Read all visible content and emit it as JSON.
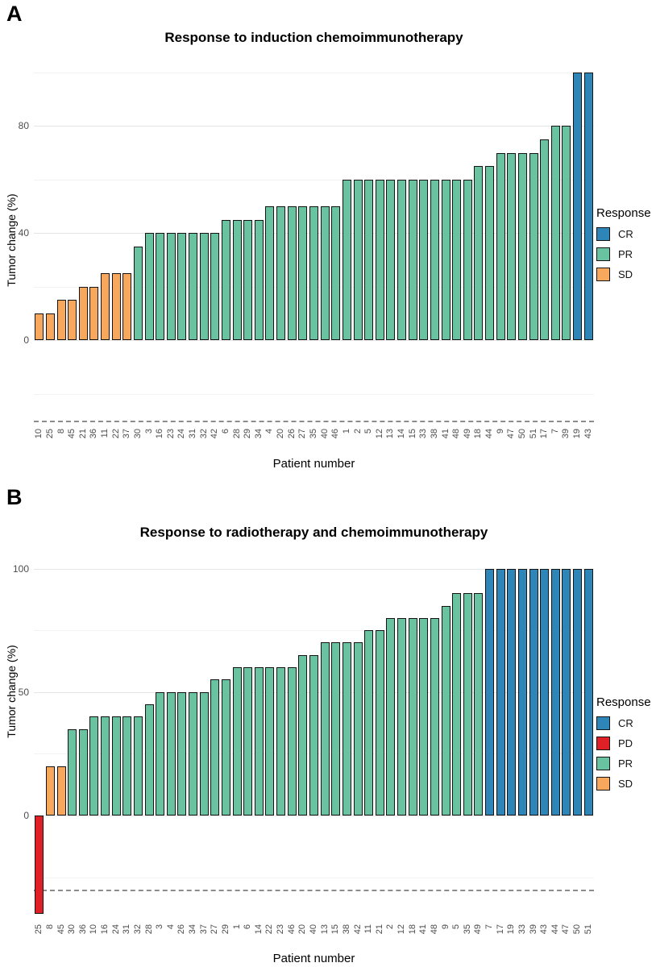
{
  "figure": {
    "background": "#ffffff"
  },
  "chart_data": [
    {
      "type": "bar",
      "panel_label": "A",
      "title": "Response to induction chemoimmunotherapy",
      "xlabel": "Patient number",
      "ylabel": "Tumor change (%)",
      "legend_title": "Response",
      "legend_position": "right",
      "grid": true,
      "categories": [
        "10",
        "25",
        "8",
        "45",
        "21",
        "36",
        "11",
        "22",
        "37",
        "30",
        "3",
        "16",
        "23",
        "24",
        "31",
        "32",
        "42",
        "6",
        "28",
        "29",
        "34",
        "4",
        "20",
        "26",
        "27",
        "35",
        "40",
        "46",
        "1",
        "2",
        "5",
        "12",
        "13",
        "14",
        "15",
        "33",
        "38",
        "41",
        "48",
        "49",
        "18",
        "44",
        "9",
        "47",
        "50",
        "51",
        "17",
        "7",
        "39",
        "19",
        "43"
      ],
      "values": [
        10,
        10,
        15,
        15,
        20,
        20,
        25,
        25,
        25,
        35,
        40,
        40,
        40,
        40,
        40,
        40,
        40,
        45,
        45,
        45,
        45,
        50,
        50,
        50,
        50,
        50,
        50,
        50,
        60,
        60,
        60,
        60,
        60,
        60,
        60,
        60,
        60,
        60,
        60,
        60,
        65,
        65,
        70,
        70,
        70,
        70,
        75,
        80,
        80,
        100,
        100
      ],
      "responses": [
        "SD",
        "SD",
        "SD",
        "SD",
        "SD",
        "SD",
        "SD",
        "SD",
        "SD",
        "PR",
        "PR",
        "PR",
        "PR",
        "PR",
        "PR",
        "PR",
        "PR",
        "PR",
        "PR",
        "PR",
        "PR",
        "PR",
        "PR",
        "PR",
        "PR",
        "PR",
        "PR",
        "PR",
        "PR",
        "PR",
        "PR",
        "PR",
        "PR",
        "PR",
        "PR",
        "PR",
        "PR",
        "PR",
        "PR",
        "PR",
        "PR",
        "PR",
        "PR",
        "PR",
        "PR",
        "PR",
        "PR",
        "PR",
        "PR",
        "CR",
        "CR"
      ],
      "colors": {
        "CR": "#2E86B8",
        "PR": "#69C3A1",
        "SD": "#F7A85D"
      },
      "legend": [
        {
          "label": "CR",
          "color": "#2E86B8"
        },
        {
          "label": "PR",
          "color": "#69C3A1"
        },
        {
          "label": "SD",
          "color": "#F7A85D"
        }
      ],
      "yticks": [
        0,
        40,
        80
      ],
      "minor_gridlines": [
        -20,
        20,
        60,
        100
      ],
      "dashed_reference_y": -30,
      "ylim": [
        -31.0,
        100.6
      ]
    },
    {
      "type": "bar",
      "panel_label": "B",
      "title": "Response to radiotherapy and chemoimmunotherapy",
      "xlabel": "Patient number",
      "ylabel": "Tumor change (%)",
      "legend_title": "Response",
      "legend_position": "right",
      "grid": true,
      "categories": [
        "25",
        "8",
        "45",
        "30",
        "36",
        "10",
        "16",
        "24",
        "31",
        "32",
        "28",
        "3",
        "4",
        "26",
        "34",
        "37",
        "27",
        "29",
        "1",
        "6",
        "14",
        "22",
        "23",
        "46",
        "20",
        "40",
        "13",
        "15",
        "38",
        "42",
        "11",
        "21",
        "2",
        "12",
        "18",
        "41",
        "48",
        "9",
        "5",
        "35",
        "49",
        "7",
        "17",
        "19",
        "33",
        "39",
        "43",
        "44",
        "47",
        "50",
        "51"
      ],
      "values": [
        -40,
        20,
        20,
        35,
        35,
        40,
        40,
        40,
        40,
        40,
        45,
        50,
        50,
        50,
        50,
        50,
        55,
        55,
        60,
        60,
        60,
        60,
        60,
        60,
        65,
        65,
        70,
        70,
        70,
        70,
        75,
        75,
        80,
        80,
        80,
        80,
        80,
        85,
        90,
        90,
        90,
        100,
        100,
        100,
        100,
        100,
        100,
        100,
        100,
        100,
        100
      ],
      "responses": [
        "PD",
        "SD",
        "SD",
        "PR",
        "PR",
        "PR",
        "PR",
        "PR",
        "PR",
        "PR",
        "PR",
        "PR",
        "PR",
        "PR",
        "PR",
        "PR",
        "PR",
        "PR",
        "PR",
        "PR",
        "PR",
        "PR",
        "PR",
        "PR",
        "PR",
        "PR",
        "PR",
        "PR",
        "PR",
        "PR",
        "PR",
        "PR",
        "PR",
        "PR",
        "PR",
        "PR",
        "PR",
        "PR",
        "PR",
        "PR",
        "PR",
        "CR",
        "CR",
        "CR",
        "CR",
        "CR",
        "CR",
        "CR",
        "CR",
        "CR",
        "CR"
      ],
      "colors": {
        "CR": "#2E86B8",
        "PD": "#DF2026",
        "PR": "#69C3A1",
        "SD": "#F7A85D"
      },
      "legend": [
        {
          "label": "CR",
          "color": "#2E86B8"
        },
        {
          "label": "PD",
          "color": "#DF2026"
        },
        {
          "label": "PR",
          "color": "#69C3A1"
        },
        {
          "label": "SD",
          "color": "#F7A85D"
        }
      ],
      "yticks": [
        0,
        50,
        100
      ],
      "minor_gridlines": [
        -25,
        25,
        75
      ],
      "dashed_reference_y": -30,
      "ylim": [
        -41.8,
        101.8
      ]
    }
  ]
}
